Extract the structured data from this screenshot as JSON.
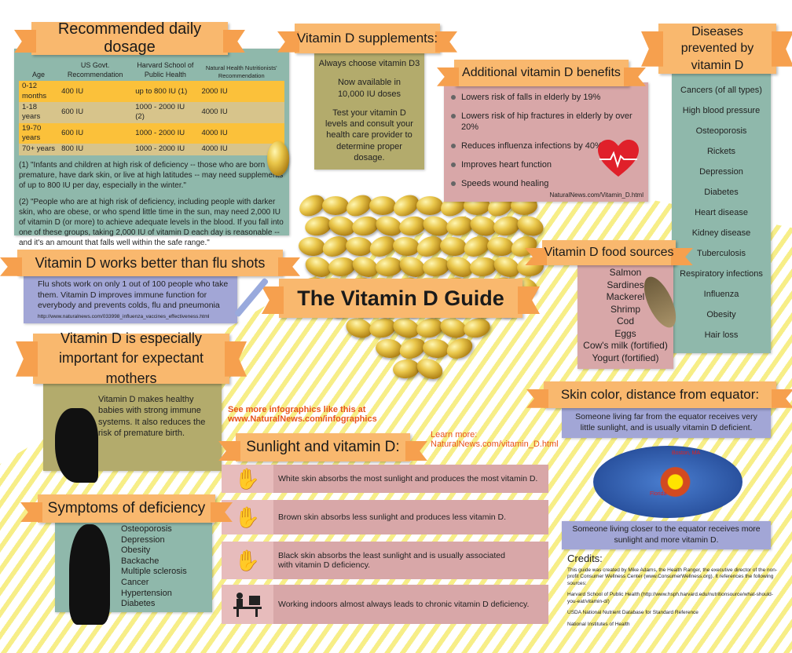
{
  "title": "The Vitamin D Guide",
  "dosage": {
    "title": "Recommended daily dosage",
    "headers": [
      "Age",
      "US Govt. Recommendation",
      "Harvard School of Public Health",
      "Natural Health Nutritionists' Recommendation"
    ],
    "rows": [
      [
        "0-12 months",
        "400 IU",
        "up to 800 IU (1)",
        "2000 IU"
      ],
      [
        "1-18 years",
        "600 IU",
        "1000 - 2000 IU (2)",
        "4000 IU"
      ],
      [
        "19-70 years",
        "600 IU",
        "1000 - 2000 IU",
        "4000 IU"
      ],
      [
        "70+ years",
        "800 IU",
        "1000 - 2000 IU",
        "4000 IU"
      ]
    ],
    "note1": "(1) \"Infants and children at high risk of deficiency -- those who are born premature, have dark skin, or live at high latitudes -- may need supplements of up to 800 IU per day, especially in the winter.\"",
    "note2": "(2) \"People who are at high risk of deficiency, including people with darker skin, who are obese, or who spend little time in the sun, may need 2,000 IU of vitamin D (or more) to achieve adequate levels in the blood. If you fall into one of these groups, taking 2,000 IU of vitamin D each day is reasonable -- and it's an amount that falls well within the safe range.\""
  },
  "supplements": {
    "title": "Vitamin D supplements:",
    "lines": [
      "Always choose vitamin D3",
      "Now available in 10,000 IU doses",
      "Test your vitamin D levels and consult your health care provider to determine proper dosage."
    ]
  },
  "benefits": {
    "title": "Additional vitamin D benefits",
    "items": [
      "Lowers risk of falls in elderly by 19%",
      "Lowers risk of hip fractures in elderly by over 20%",
      "Reduces influenza infections by 40%",
      "Improves heart function",
      "Speeds wound healing"
    ],
    "source": "NaturalNews.com/Vitamin_D.html"
  },
  "diseases": {
    "title": "Diseases prevented by vitamin D",
    "items": [
      "Cancers (of all types)",
      "High blood pressure",
      "Osteoporosis",
      "Rickets",
      "Depression",
      "Diabetes",
      "Heart disease",
      "Kidney disease",
      "Tuberculosis",
      "Respiratory infections",
      "Influenza",
      "Obesity",
      "Hair loss"
    ]
  },
  "flu": {
    "title": "Vitamin D works better than flu shots",
    "text": "Flu shots work on only 1 out of 100 people who take them. Vitamin D improves immune function for everybody and prevents colds, flu and pneumonia",
    "url": "http://www.naturalnews.com/033998_influenza_vaccines_effectiveness.html"
  },
  "mothers": {
    "title": "Vitamin D is especially important for expectant mothers",
    "text": "Vitamin D makes healthy babies with strong immune systems. It also reduces the risk of premature birth."
  },
  "food": {
    "title": "Vitamin D food sources",
    "items": [
      "Salmon",
      "Sardines",
      "Mackerel",
      "Shrimp",
      "Cod",
      "Eggs",
      "Cow's milk (fortified)",
      "Yogurt (fortified)"
    ]
  },
  "skin": {
    "title": "Skin color, distance from equator:",
    "far": "Someone living far from the equator receives very little sunlight, and is usually vitamin D deficient.",
    "close": "Someone living closer to the equator receives more sunlight and more vitamin D.",
    "map_labels": [
      "Boston, MA",
      "Florida"
    ]
  },
  "more": {
    "line1": "See more infographics like this at",
    "line2": "www.NaturalNews.com/infographics"
  },
  "learn": {
    "line1": "Learn more:",
    "line2": "NaturalNews.com/vitamin_D.html"
  },
  "sunlight": {
    "title": "Sunlight and vitamin D:",
    "rows": [
      "White skin absorbs the most sunlight and produces the most vitamin D.",
      "Brown skin absorbs less sunlight and produces less vitamin D.",
      "Black skin absorbs the least sunlight and is usually associated with vitamin D deficiency.",
      "Working indoors almost always leads to chronic vitamin D deficiency."
    ]
  },
  "symptoms": {
    "title": "Symptoms of deficiency",
    "items": [
      "Osteoporosis",
      "Depression",
      "Obesity",
      "Backache",
      "Multiple sclerosis",
      "Cancer",
      "Hypertension",
      "Diabetes"
    ]
  },
  "credits": {
    "title": "Credits:",
    "p1": "This guide was created by Mike Adams, the Health Ranger, the executive director of the non-profit Consumer Wellness Center (www.ConsumerWellness.org). It references the following sources:",
    "p2": "Harvard School of Public Health (http://www.hsph.harvard.edu/nutritionsource/what-should-you-eat/vitamin-d/)",
    "p3": "USDA National Nutrient Database for Standard Reference",
    "p4": "National Institutes of Health"
  },
  "colors": {
    "banner": "#f9b86e",
    "teal": "#8fb8ab",
    "olive": "#b3ab6c",
    "pink": "#d8a7a8",
    "lavender": "#a2a6d6",
    "link_red": "#e8531c"
  }
}
